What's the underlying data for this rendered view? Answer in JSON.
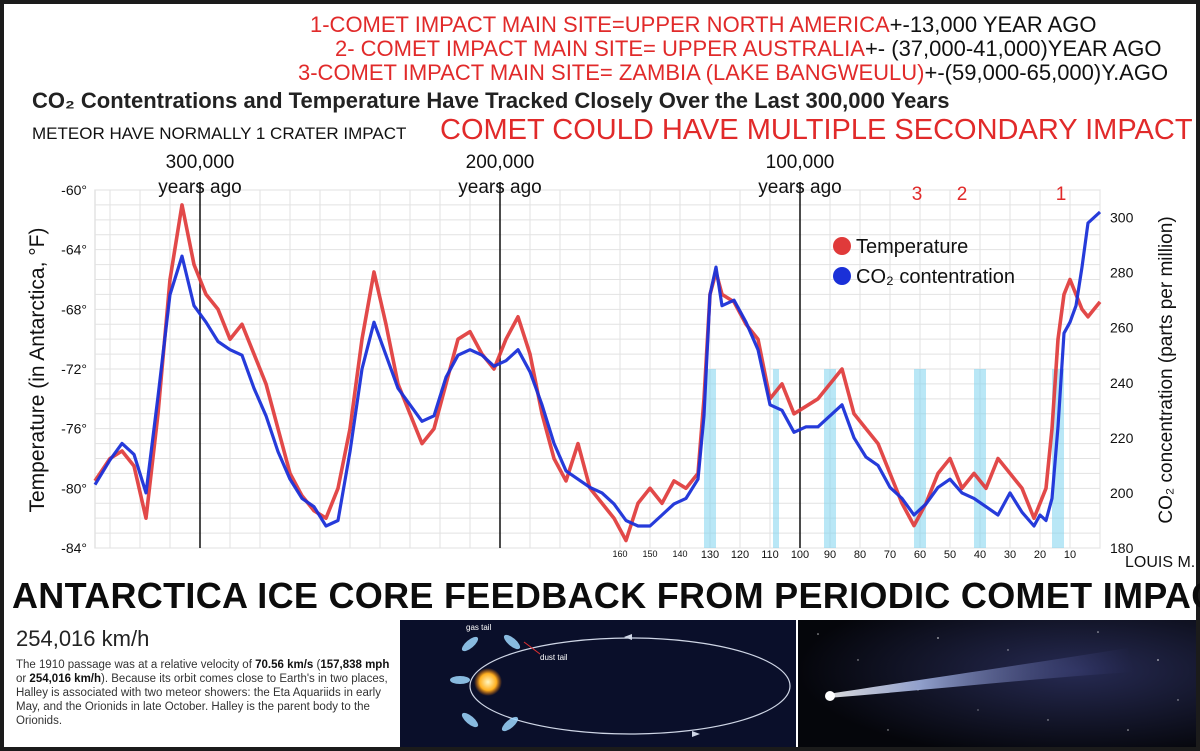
{
  "notes": [
    {
      "red": "1-COMET IMPACT MAIN SITE=UPPER NORTH AMERICA",
      "black": "+-13,000 YEAR AGO"
    },
    {
      "red": "2- COMET IMPACT MAIN SITE= UPPER AUSTRALIA",
      "black": "+- (37,000-41,000)YEAR AGO"
    },
    {
      "red": "3-COMET IMPACT MAIN SITE= ZAMBIA (LAKE BANGWEULU)",
      "black": "+-(59,000-65,000)Y.AGO"
    }
  ],
  "meteor_note": "METEOR HAVE NORMALLY 1 CRATER IMPACT",
  "comet_note": "COMET COULD HAVE MULTIPLE SECONDARY IMPACT",
  "banner": "ANTARCTICA ICE CORE FEEDBACK FROM PERIODIC COMET IMPACT",
  "author": "LOUIS M.",
  "chart_data": {
    "type": "line",
    "title": "CO₂ Contentrations and Temperature Have Tracked Closely Over the Last 300,000 Years",
    "ylabel": "Temperature (in Antarctica, °F)",
    "y2label": "CO₂ concentration (parts per million)",
    "ylim": [
      -84,
      -60
    ],
    "y2lim": [
      180,
      310
    ],
    "yticks": [
      "-60°",
      "-64°",
      "-68°",
      "-72°",
      "-76°",
      "-80°",
      "-84°"
    ],
    "y2ticks": [
      "300",
      "280",
      "260",
      "240",
      "220",
      "200",
      "180"
    ],
    "xlim": [
      335,
      0
    ],
    "top_markers": [
      {
        "x": 300,
        "value": "300,000",
        "label": "years ago"
      },
      {
        "x": 200,
        "value": "200,000",
        "label": "years ago"
      },
      {
        "x": 100,
        "value": "100,000",
        "label": "years ago"
      }
    ],
    "bottom_ticks": [
      "160",
      "150",
      "140",
      "130",
      "120",
      "110",
      "100",
      "90",
      "80",
      "70",
      "60",
      "50",
      "40",
      "30",
      "20",
      "10"
    ],
    "impact_labels": [
      {
        "x": 61,
        "label": "3"
      },
      {
        "x": 46,
        "label": "2"
      },
      {
        "x": 13,
        "label": "1"
      }
    ],
    "impact_bands": [
      [
        132,
        128
      ],
      [
        109,
        107
      ],
      [
        92,
        88
      ],
      [
        62,
        58
      ],
      [
        42,
        38
      ],
      [
        16,
        12
      ]
    ],
    "grid": true,
    "legend_position": "top-right",
    "series": [
      {
        "name": "Temperature",
        "color": "#e03a3a",
        "x": [
          335,
          330,
          326,
          322,
          318,
          314,
          310,
          306,
          302,
          298,
          294,
          290,
          286,
          282,
          278,
          274,
          270,
          266,
          262,
          258,
          254,
          250,
          246,
          242,
          238,
          234,
          230,
          226,
          222,
          218,
          214,
          210,
          206,
          202,
          198,
          194,
          190,
          186,
          182,
          178,
          174,
          170,
          166,
          162,
          158,
          154,
          150,
          146,
          142,
          138,
          134,
          132,
          130,
          128,
          126,
          122,
          118,
          114,
          110,
          106,
          102,
          98,
          94,
          90,
          86,
          82,
          78,
          74,
          70,
          66,
          62,
          58,
          54,
          50,
          46,
          42,
          38,
          34,
          30,
          26,
          22,
          20,
          18,
          16,
          14,
          12,
          10,
          8,
          6,
          4,
          2,
          0
        ],
        "y": [
          -79.5,
          -78,
          -77.5,
          -78.5,
          -82,
          -75,
          -66,
          -61,
          -65,
          -67,
          -68,
          -70,
          -69,
          -71,
          -73,
          -76,
          -79,
          -80.5,
          -81.5,
          -82,
          -80,
          -76,
          -70,
          -65.5,
          -69,
          -73,
          -75,
          -77,
          -76,
          -73,
          -70,
          -69.5,
          -71,
          -72,
          -70,
          -68.5,
          -71,
          -75,
          -78,
          -79.5,
          -77,
          -80,
          -81,
          -82,
          -83.5,
          -81,
          -80,
          -81,
          -79.5,
          -80,
          -79,
          -74,
          -67,
          -65.5,
          -67,
          -67.5,
          -69,
          -70,
          -74,
          -73,
          -75,
          -74.5,
          -74,
          -73,
          -72,
          -75,
          -76,
          -77,
          -79,
          -81,
          -82.5,
          -81,
          -79,
          -78,
          -80,
          -79,
          -80,
          -78,
          -79,
          -80,
          -82,
          -81,
          -80,
          -76,
          -70,
          -67,
          -66,
          -67,
          -68,
          -68.5,
          -68,
          -67.5
        ]
      },
      {
        "name": "CO₂ contentration",
        "color": "#1a30d8",
        "x": [
          335,
          330,
          326,
          322,
          318,
          314,
          310,
          306,
          302,
          298,
          294,
          290,
          286,
          282,
          278,
          274,
          270,
          266,
          262,
          258,
          254,
          250,
          246,
          242,
          238,
          234,
          230,
          226,
          222,
          218,
          214,
          210,
          206,
          202,
          198,
          194,
          190,
          186,
          182,
          178,
          174,
          170,
          166,
          162,
          158,
          154,
          150,
          146,
          142,
          138,
          134,
          132,
          130,
          128,
          126,
          122,
          118,
          114,
          110,
          106,
          102,
          98,
          94,
          90,
          86,
          82,
          78,
          74,
          70,
          66,
          62,
          58,
          54,
          50,
          46,
          42,
          38,
          34,
          30,
          26,
          22,
          20,
          18,
          16,
          14,
          12,
          10,
          8,
          6,
          4,
          2,
          0
        ],
        "y": [
          203,
          212,
          218,
          214,
          200,
          235,
          272,
          286,
          268,
          262,
          255,
          252,
          250,
          238,
          228,
          215,
          205,
          198,
          195,
          188,
          190,
          215,
          245,
          262,
          250,
          238,
          232,
          226,
          228,
          242,
          250,
          252,
          250,
          246,
          248,
          252,
          244,
          232,
          218,
          208,
          205,
          202,
          200,
          196,
          190,
          188,
          188,
          192,
          196,
          198,
          205,
          228,
          272,
          282,
          268,
          270,
          262,
          252,
          232,
          230,
          222,
          224,
          224,
          228,
          232,
          220,
          213,
          210,
          202,
          198,
          192,
          196,
          202,
          205,
          200,
          198,
          195,
          192,
          200,
          193,
          188,
          192,
          190,
          198,
          224,
          258,
          262,
          268,
          282,
          298,
          300,
          302
        ]
      }
    ]
  },
  "info": {
    "speed": "254,016 km/h",
    "desc_1": "The 1910 passage was at a relative velocity of ",
    "desc_b1": "70.56 km/s",
    "desc_2": " (",
    "desc_b2": "157,838 mph",
    "desc_3": " or ",
    "desc_b3": "254,016 km/h",
    "desc_4": "). Because its orbit comes close to Earth's in two places, Halley is associated with two meteor showers: the Eta Aquariids in early May, and the Orionids in late October. Halley is the parent body to the Orionids."
  },
  "diagram": {
    "gas_tail": "gas tail",
    "dust_tail": "dust tail"
  }
}
